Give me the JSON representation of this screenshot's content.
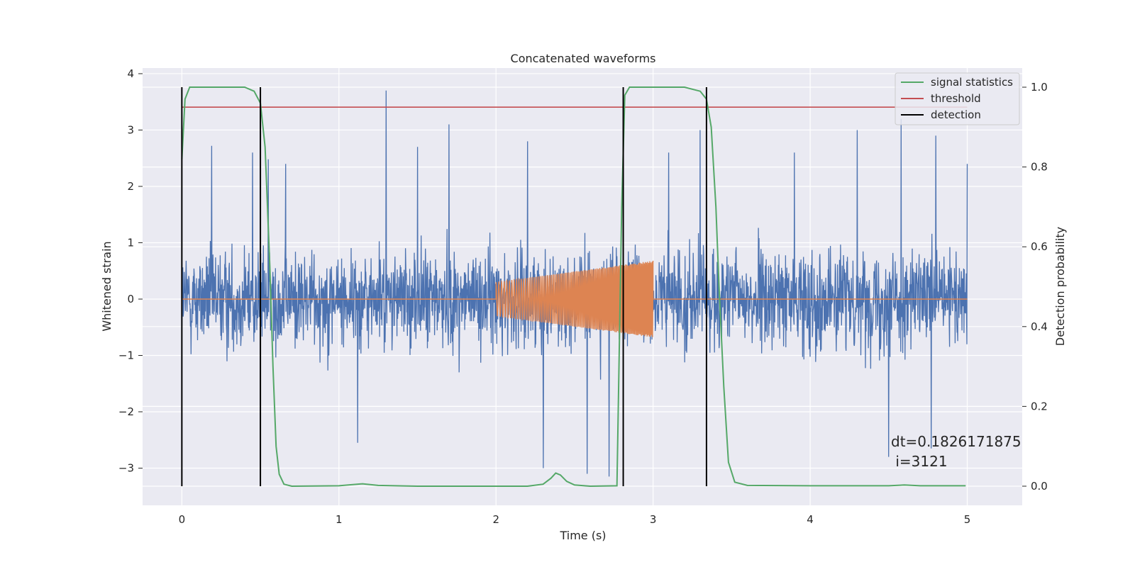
{
  "chart_data": {
    "type": "line",
    "title": "Concatenated waveforms",
    "xlabel": "Time (s)",
    "ylabel": "Whitened strain",
    "y2label": "Detection probability",
    "xlim": [
      -0.25,
      5.35
    ],
    "ylim": [
      -3.66,
      4.1
    ],
    "y2lim": [
      -0.048,
      1.048
    ],
    "x_ticks": [
      "0",
      "1",
      "2",
      "3",
      "4",
      "5"
    ],
    "y_ticks": [
      "4",
      "3",
      "2",
      "1",
      "0",
      "−1",
      "−2",
      "−3"
    ],
    "y2_ticks": [
      "1.0",
      "0.8",
      "0.6",
      "0.4",
      "0.2",
      "0.0"
    ],
    "grid": true,
    "legend_position": "top-right",
    "legend": [
      {
        "name": "signal statistics",
        "color": "#55a868"
      },
      {
        "name": "threshold",
        "color": "#c44e52"
      },
      {
        "name": "detection",
        "color": "#000000"
      }
    ],
    "colors": {
      "strain": "#4c72b0",
      "injected_waveform": "#dd8452",
      "signal_statistics": "#55a868",
      "threshold": "#c44e52",
      "detection": "#000000",
      "plot_background": "#eaeaf2",
      "grid": "#ffffff"
    },
    "series": [
      {
        "name": "signal statistics",
        "axis": "right",
        "x": [
          0.0,
          0.02,
          0.05,
          0.1,
          0.2,
          0.3,
          0.4,
          0.46,
          0.5,
          0.53,
          0.56,
          0.58,
          0.6,
          0.62,
          0.65,
          0.7,
          1.0,
          1.15,
          1.25,
          1.5,
          2.0,
          2.2,
          2.3,
          2.35,
          2.38,
          2.41,
          2.45,
          2.5,
          2.6,
          2.77,
          2.8,
          2.82,
          2.85,
          2.9,
          3.0,
          3.2,
          3.3,
          3.34,
          3.37,
          3.4,
          3.42,
          3.45,
          3.48,
          3.52,
          3.6,
          4.0,
          4.5,
          4.6,
          4.7,
          4.99
        ],
        "values": [
          0.82,
          0.97,
          1.0,
          1.0,
          1.0,
          1.0,
          1.0,
          0.99,
          0.96,
          0.85,
          0.55,
          0.3,
          0.1,
          0.03,
          0.005,
          0.0,
          0.001,
          0.006,
          0.002,
          0.0,
          0.0,
          0.0,
          0.005,
          0.02,
          0.033,
          0.028,
          0.012,
          0.003,
          0.0,
          0.001,
          0.7,
          0.98,
          1.0,
          1.0,
          1.0,
          1.0,
          0.99,
          0.97,
          0.9,
          0.7,
          0.5,
          0.25,
          0.06,
          0.01,
          0.002,
          0.001,
          0.001,
          0.003,
          0.001,
          0.001
        ]
      },
      {
        "name": "threshold",
        "axis": "right",
        "x": [
          0.0,
          5.0
        ],
        "values": [
          0.95,
          0.95
        ]
      },
      {
        "name": "detection",
        "axis": "right",
        "times": [
          0.0,
          0.5,
          2.81,
          3.34
        ],
        "range": [
          0.0,
          1.0
        ]
      },
      {
        "name": "strain",
        "axis": "left",
        "x_range": [
          0.0,
          5.0
        ],
        "spikes": [
          {
            "x": 0.19,
            "y": 2.72
          },
          {
            "x": 0.45,
            "y": 2.6
          },
          {
            "x": 0.55,
            "y": 2.48
          },
          {
            "x": 0.66,
            "y": 2.4
          },
          {
            "x": 1.3,
            "y": 3.7
          },
          {
            "x": 1.12,
            "y": -2.55
          },
          {
            "x": 1.7,
            "y": 3.1
          },
          {
            "x": 1.5,
            "y": 2.7
          },
          {
            "x": 2.2,
            "y": 2.8
          },
          {
            "x": 2.3,
            "y": -3.0
          },
          {
            "x": 2.58,
            "y": -3.1
          },
          {
            "x": 2.72,
            "y": -3.15
          },
          {
            "x": 3.1,
            "y": 2.6
          },
          {
            "x": 3.3,
            "y": 3.0
          },
          {
            "x": 3.9,
            "y": 2.6
          },
          {
            "x": 4.3,
            "y": 3.0
          },
          {
            "x": 4.58,
            "y": 3.2
          },
          {
            "x": 4.8,
            "y": 2.9
          },
          {
            "x": 4.5,
            "y": -2.8
          },
          {
            "x": 4.77,
            "y": -2.65
          },
          {
            "x": 5.0,
            "y": 2.4
          }
        ]
      },
      {
        "name": "injected waveform",
        "axis": "left",
        "start": 2.0,
        "end": 3.0,
        "amplitude_start": 0.3,
        "amplitude_end": 0.68
      }
    ],
    "annotation": {
      "line1": "dt=0.1826171875",
      "line2": " i=3121"
    }
  }
}
